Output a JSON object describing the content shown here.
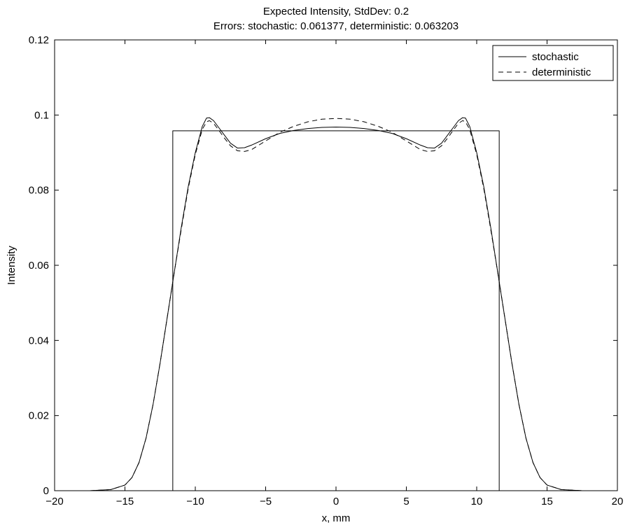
{
  "chart_data": {
    "type": "line",
    "title": "Expected Intensity, StdDev: 0.2",
    "subtitle": "Errors: stochastic: 0.061377, deterministic: 0.063203",
    "xlabel": "x, mm",
    "ylabel": "Intensity",
    "xlim": [
      -20,
      20
    ],
    "ylim": [
      0,
      0.12
    ],
    "x_ticks": [
      -20,
      -15,
      -10,
      -5,
      0,
      5,
      10,
      15,
      20
    ],
    "y_ticks": [
      0,
      0.02,
      0.04,
      0.06,
      0.08,
      0.1,
      0.12
    ],
    "x_tick_labels": [
      "−20",
      "−15",
      "−10",
      "−5",
      "0",
      "5",
      "10",
      "15",
      "20"
    ],
    "y_tick_labels": [
      "0",
      "0.02",
      "0.04",
      "0.06",
      "0.08",
      "0.1",
      "0.12"
    ],
    "grid": false,
    "legend_position": "top-right",
    "series": [
      {
        "name": "stochastic",
        "style": "solid",
        "color": "#000000",
        "x": [
          -17.5,
          -16.0,
          -15.0,
          -14.5,
          -14.0,
          -13.5,
          -13.0,
          -12.5,
          -12.0,
          -11.5,
          -11.0,
          -10.5,
          -10.0,
          -9.5,
          -9.2,
          -9.0,
          -8.7,
          -8.3,
          -8.0,
          -7.5,
          -7.0,
          -6.5,
          -6.0,
          -5.0,
          -4.0,
          -3.0,
          -2.0,
          -1.0,
          0.0,
          1.0,
          2.0,
          3.0,
          4.0,
          5.0,
          6.0,
          6.5,
          7.0,
          7.5,
          8.0,
          8.3,
          8.7,
          9.0,
          9.2,
          9.5,
          10.0,
          10.5,
          11.0,
          11.5,
          12.0,
          12.5,
          13.0,
          13.5,
          14.0,
          14.5,
          15.0,
          16.0,
          17.5
        ],
        "y": [
          0.0,
          0.0003,
          0.0015,
          0.0035,
          0.0075,
          0.014,
          0.023,
          0.034,
          0.046,
          0.058,
          0.07,
          0.081,
          0.09,
          0.097,
          0.0992,
          0.0993,
          0.0985,
          0.0965,
          0.095,
          0.0925,
          0.0912,
          0.0913,
          0.092,
          0.0937,
          0.0951,
          0.0959,
          0.0964,
          0.0967,
          0.0968,
          0.0967,
          0.0964,
          0.0959,
          0.0951,
          0.0937,
          0.092,
          0.0913,
          0.0912,
          0.0925,
          0.095,
          0.0965,
          0.0985,
          0.0993,
          0.0992,
          0.097,
          0.09,
          0.081,
          0.07,
          0.058,
          0.046,
          0.034,
          0.023,
          0.014,
          0.0075,
          0.0035,
          0.0015,
          0.0003,
          0.0
        ]
      },
      {
        "name": "deterministic",
        "style": "dashed",
        "color": "#000000",
        "x": [
          -17.5,
          -16.0,
          -15.0,
          -14.5,
          -14.0,
          -13.5,
          -13.0,
          -12.5,
          -12.0,
          -11.5,
          -11.0,
          -10.5,
          -10.0,
          -9.5,
          -9.2,
          -9.0,
          -8.7,
          -8.3,
          -8.0,
          -7.5,
          -7.0,
          -6.5,
          -6.0,
          -5.0,
          -4.0,
          -3.0,
          -2.0,
          -1.0,
          0.0,
          1.0,
          2.0,
          3.0,
          4.0,
          5.0,
          6.0,
          6.5,
          7.0,
          7.5,
          8.0,
          8.3,
          8.7,
          9.0,
          9.2,
          9.5,
          10.0,
          10.5,
          11.0,
          11.5,
          12.0,
          12.5,
          13.0,
          13.5,
          14.0,
          14.5,
          15.0,
          16.0,
          17.5
        ],
        "y": [
          0.0,
          0.0003,
          0.0015,
          0.0035,
          0.0075,
          0.014,
          0.023,
          0.034,
          0.046,
          0.058,
          0.0695,
          0.0805,
          0.0895,
          0.0962,
          0.0982,
          0.0985,
          0.0978,
          0.0958,
          0.0942,
          0.0918,
          0.0905,
          0.0903,
          0.0908,
          0.0931,
          0.0954,
          0.097,
          0.0982,
          0.0989,
          0.0991,
          0.0989,
          0.0982,
          0.097,
          0.0954,
          0.0931,
          0.0908,
          0.0903,
          0.0905,
          0.0918,
          0.0942,
          0.0958,
          0.0978,
          0.0985,
          0.0982,
          0.0962,
          0.0895,
          0.0805,
          0.0695,
          0.058,
          0.046,
          0.034,
          0.023,
          0.014,
          0.0075,
          0.0035,
          0.0015,
          0.0003,
          0.0
        ]
      },
      {
        "style": "solid",
        "color": "#000000",
        "x": [
          -11.6,
          -11.6,
          11.6,
          11.6
        ],
        "y": [
          0.0,
          0.0958,
          0.0958,
          0.0
        ]
      }
    ]
  }
}
